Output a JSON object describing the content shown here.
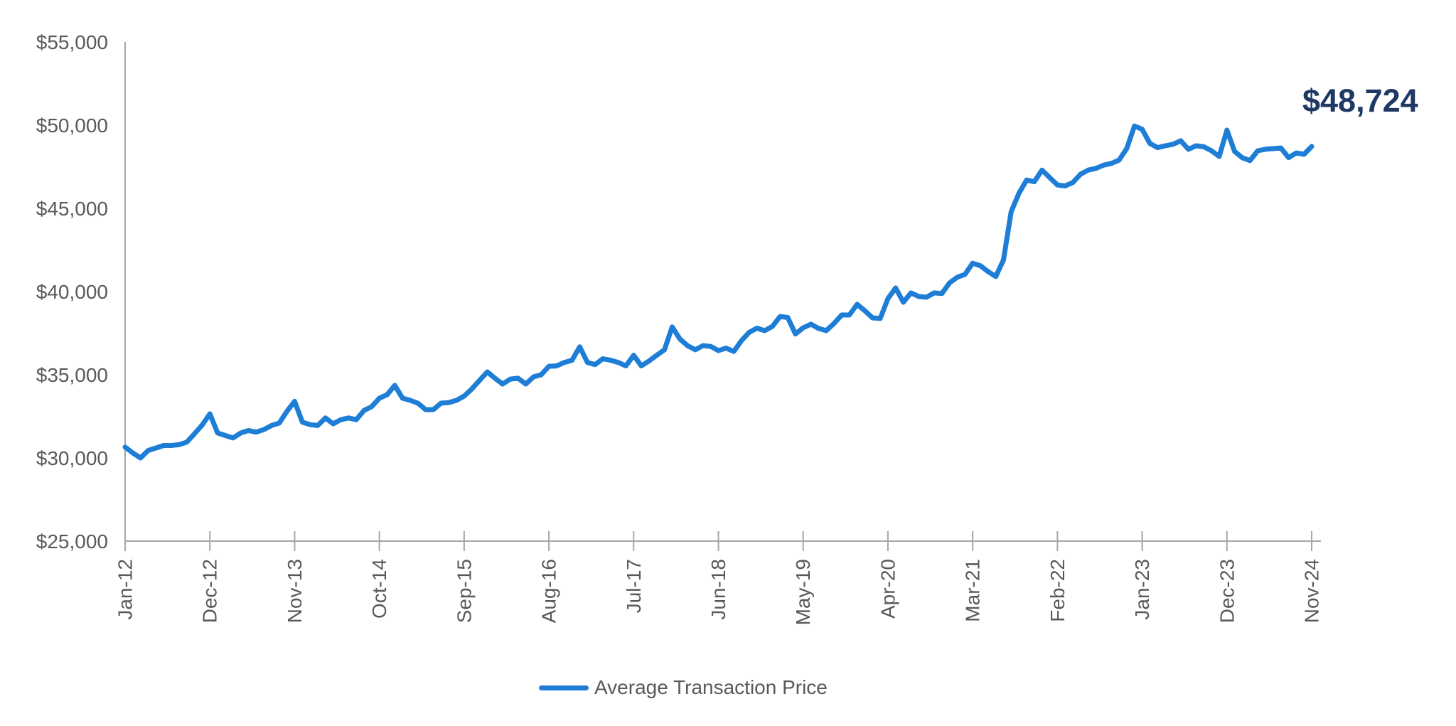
{
  "page": {
    "background": "#ffffff"
  },
  "axis": {
    "line_color": "#a6a6a6",
    "label_color": "#595959"
  },
  "legend": {
    "label": "Average Transaction Price",
    "swatch_color": "#1e7ed6"
  },
  "annotation": {
    "text": "$48,724",
    "color": "#1f3864"
  },
  "chart_data": {
    "type": "line",
    "title": "",
    "frequency": "monthly",
    "x_start": "Jan-12",
    "x_end": "Nov-24",
    "x_tick_labels": [
      "Jan-12",
      "Dec-12",
      "Nov-13",
      "Oct-14",
      "Sep-15",
      "Aug-16",
      "Jul-17",
      "Jun-18",
      "May-19",
      "Apr-20",
      "Mar-21",
      "Feb-22",
      "Jan-23",
      "Dec-23",
      "Nov-24"
    ],
    "x_tick_every_n_points": 11,
    "y_min": 25000,
    "y_max": 55000,
    "y_tick_step": 5000,
    "y_tick_labels": [
      "$25,000",
      "$30,000",
      "$35,000",
      "$40,000",
      "$45,000",
      "$50,000",
      "$55,000"
    ],
    "grid": false,
    "legend_position": "bottom-center",
    "end_label": "$48,724",
    "series": [
      {
        "name": "Average Transaction Price",
        "color": "#1e7ed6",
        "values": [
          30650,
          30300,
          30000,
          30450,
          30600,
          30750,
          30750,
          30800,
          30950,
          31450,
          31980,
          32650,
          31500,
          31350,
          31200,
          31500,
          31650,
          31550,
          31700,
          31950,
          32100,
          32800,
          33400,
          32150,
          32000,
          31950,
          32400,
          32050,
          32300,
          32400,
          32300,
          32850,
          33080,
          33590,
          33800,
          34360,
          33590,
          33460,
          33290,
          32900,
          32900,
          33290,
          33330,
          33460,
          33720,
          34150,
          34660,
          35170,
          34790,
          34440,
          34740,
          34790,
          34440,
          34870,
          35000,
          35510,
          35530,
          35740,
          35870,
          36680,
          35740,
          35610,
          35960,
          35870,
          35740,
          35530,
          36170,
          35530,
          35830,
          36170,
          36500,
          37870,
          37150,
          36750,
          36500,
          36750,
          36700,
          36450,
          36600,
          36400,
          37050,
          37550,
          37800,
          37650,
          37900,
          38500,
          38440,
          37450,
          37820,
          38040,
          37780,
          37650,
          38080,
          38590,
          38590,
          39230,
          38850,
          38420,
          38380,
          39570,
          40220,
          39360,
          39920,
          39700,
          39660,
          39920,
          39880,
          40520,
          40860,
          41030,
          41700,
          41550,
          41200,
          40900,
          41900,
          44800,
          45900,
          46700,
          46600,
          47300,
          46850,
          46400,
          46350,
          46550,
          47050,
          47300,
          47400,
          47600,
          47700,
          47900,
          48600,
          49950,
          49750,
          48900,
          48650,
          48760,
          48850,
          49060,
          48550,
          48760,
          48700,
          48460,
          48120,
          49700,
          48420,
          48040,
          47870,
          48460,
          48550,
          48590,
          48630,
          48050,
          48330,
          48250,
          48724
        ]
      }
    ]
  }
}
